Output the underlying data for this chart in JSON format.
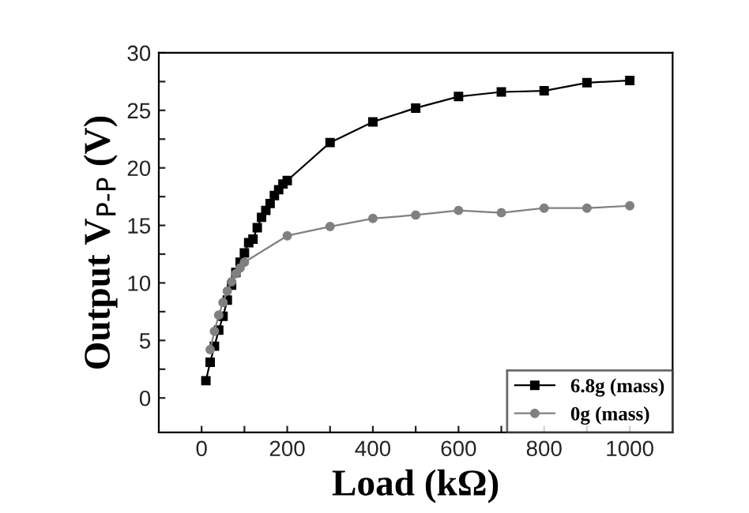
{
  "chart_data": {
    "type": "line",
    "xlabel": "Load (kΩ)",
    "ylabel": "Output V$_{P-P}$ (V)",
    "xlim": [
      -100,
      1100
    ],
    "ylim": [
      -3,
      30
    ],
    "xticks": [
      0,
      {
        "value": 100,
        "label": null
      },
      200,
      {
        "value": 300,
        "label": null
      },
      400,
      {
        "value": 500,
        "label": null
      },
      600,
      {
        "value": 700,
        "label": null
      },
      800,
      {
        "value": 900,
        "label": null
      },
      1000
    ],
    "yticks": [
      0,
      {
        "value": 2.5,
        "label": null
      },
      5,
      {
        "value": 7.5,
        "label": null
      },
      10,
      {
        "value": 12.5,
        "label": null
      },
      15,
      {
        "value": 17.5,
        "label": null
      },
      20,
      {
        "value": 22.5,
        "label": null
      },
      25,
      {
        "value": 27.5,
        "label": null
      },
      30
    ],
    "grid": false,
    "legend": "bottom right",
    "series": [
      {
        "name": "6.8g (mass)",
        "color": "#000000",
        "marker": "square",
        "x": [
          10,
          20,
          30,
          40,
          50,
          60,
          70,
          80,
          90,
          100,
          110,
          120,
          130,
          140,
          150,
          160,
          170,
          180,
          190,
          200,
          300,
          400,
          500,
          600,
          700,
          800,
          900,
          1000
        ],
        "values": [
          1.5,
          3.1,
          4.5,
          5.9,
          7.1,
          8.5,
          9.8,
          10.9,
          11.8,
          12.6,
          13.5,
          13.8,
          14.8,
          15.7,
          16.3,
          16.9,
          17.6,
          18.1,
          18.6,
          18.9,
          22.2,
          24.0,
          25.2,
          26.2,
          26.6,
          26.7,
          27.4,
          27.6
        ]
      },
      {
        "name": "0g (mass)",
        "color": "#808080",
        "marker": "circle",
        "x": [
          20,
          30,
          40,
          50,
          60,
          70,
          80,
          90,
          100,
          200,
          300,
          400,
          500,
          600,
          700,
          800,
          900,
          1000
        ],
        "values": [
          4.2,
          5.8,
          7.2,
          8.3,
          9.3,
          10.1,
          10.8,
          11.3,
          11.8,
          14.1,
          14.9,
          15.6,
          15.9,
          16.3,
          16.1,
          16.5,
          16.5,
          16.7
        ]
      }
    ]
  }
}
